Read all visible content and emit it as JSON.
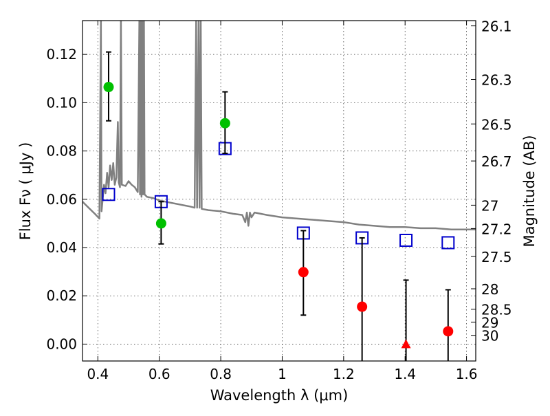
{
  "chart_data": {
    "type": "scatter",
    "title": "",
    "xlabel": "Wavelength  λ (μm)",
    "ylabel": "Flux  Fν  ( μJy )",
    "ylabel_right": "Magnitude (AB)",
    "xlim": [
      0.35,
      1.63
    ],
    "ylim": [
      -0.007,
      0.134
    ],
    "grid": true,
    "legend": "none",
    "x_ticks": [
      {
        "value": 0.4,
        "label": "0.4"
      },
      {
        "value": 0.6,
        "label": "0.6"
      },
      {
        "value": 0.8,
        "label": "0.8"
      },
      {
        "value": 1.0,
        "label": "1"
      },
      {
        "value": 1.2,
        "label": "1.2"
      },
      {
        "value": 1.4,
        "label": "1.4"
      },
      {
        "value": 1.6,
        "label": "1.6"
      }
    ],
    "y_ticks": [
      {
        "value": 0.0,
        "label": "0.00"
      },
      {
        "value": 0.02,
        "label": "0.02"
      },
      {
        "value": 0.04,
        "label": "0.04"
      },
      {
        "value": 0.06,
        "label": "0.06"
      },
      {
        "value": 0.08,
        "label": "0.08"
      },
      {
        "value": 0.1,
        "label": "0.10"
      },
      {
        "value": 0.12,
        "label": "0.12"
      }
    ],
    "right_ticks": [
      {
        "mag": 26.1,
        "label": "26.1"
      },
      {
        "mag": 26.3,
        "label": "26.3"
      },
      {
        "mag": 26.5,
        "label": "26.5"
      },
      {
        "mag": 26.7,
        "label": "26.7"
      },
      {
        "mag": 27,
        "label": "27"
      },
      {
        "mag": 27.2,
        "label": "27.2"
      },
      {
        "mag": 27.5,
        "label": "27.5"
      },
      {
        "mag": 28,
        "label": "28"
      },
      {
        "mag": 28.5,
        "label": "28.5"
      },
      {
        "mag": 29,
        "label": "29"
      },
      {
        "mag": 30,
        "label": "30"
      }
    ],
    "colors": {
      "model": "#808080",
      "green": "#00c000",
      "red": "#ff0000",
      "blue": "#0000cc",
      "errorbar": "#000000"
    },
    "model_spectrum": [
      [
        0.35,
        0.059
      ],
      [
        0.37,
        0.0565
      ],
      [
        0.39,
        0.054
      ],
      [
        0.405,
        0.052
      ],
      [
        0.41,
        0.134
      ],
      [
        0.412,
        0.055
      ],
      [
        0.42,
        0.066
      ],
      [
        0.425,
        0.0625
      ],
      [
        0.43,
        0.071
      ],
      [
        0.435,
        0.065
      ],
      [
        0.44,
        0.074
      ],
      [
        0.445,
        0.068
      ],
      [
        0.45,
        0.075
      ],
      [
        0.455,
        0.066
      ],
      [
        0.46,
        0.069
      ],
      [
        0.465,
        0.092
      ],
      [
        0.468,
        0.067
      ],
      [
        0.472,
        0.065
      ],
      [
        0.475,
        0.134
      ],
      [
        0.478,
        0.066
      ],
      [
        0.49,
        0.0655
      ],
      [
        0.5,
        0.0675
      ],
      [
        0.51,
        0.066
      ],
      [
        0.52,
        0.065
      ],
      [
        0.53,
        0.063
      ],
      [
        0.535,
        0.134
      ],
      [
        0.537,
        0.062
      ],
      [
        0.54,
        0.134
      ],
      [
        0.542,
        0.061
      ],
      [
        0.545,
        0.134
      ],
      [
        0.547,
        0.062
      ],
      [
        0.55,
        0.134
      ],
      [
        0.552,
        0.062
      ],
      [
        0.56,
        0.061
      ],
      [
        0.58,
        0.0605
      ],
      [
        0.6,
        0.0595
      ],
      [
        0.62,
        0.059
      ],
      [
        0.64,
        0.0585
      ],
      [
        0.66,
        0.058
      ],
      [
        0.68,
        0.0575
      ],
      [
        0.7,
        0.057
      ],
      [
        0.715,
        0.0565
      ],
      [
        0.72,
        0.134
      ],
      [
        0.723,
        0.0565
      ],
      [
        0.728,
        0.134
      ],
      [
        0.731,
        0.0565
      ],
      [
        0.735,
        0.134
      ],
      [
        0.738,
        0.056
      ],
      [
        0.76,
        0.0555
      ],
      [
        0.8,
        0.055
      ],
      [
        0.84,
        0.054
      ],
      [
        0.87,
        0.0535
      ],
      [
        0.88,
        0.0505
      ],
      [
        0.885,
        0.0545
      ],
      [
        0.89,
        0.049
      ],
      [
        0.895,
        0.0545
      ],
      [
        0.9,
        0.0525
      ],
      [
        0.91,
        0.0545
      ],
      [
        0.93,
        0.054
      ],
      [
        0.95,
        0.0535
      ],
      [
        1.0,
        0.0525
      ],
      [
        1.05,
        0.052
      ],
      [
        1.1,
        0.0515
      ],
      [
        1.15,
        0.051
      ],
      [
        1.2,
        0.0505
      ],
      [
        1.25,
        0.0495
      ],
      [
        1.3,
        0.049
      ],
      [
        1.35,
        0.0485
      ],
      [
        1.4,
        0.0485
      ],
      [
        1.45,
        0.048
      ],
      [
        1.5,
        0.048
      ],
      [
        1.55,
        0.0475
      ],
      [
        1.6,
        0.0475
      ],
      [
        1.63,
        0.0475
      ]
    ],
    "model_points": [
      {
        "x": 0.435,
        "y": 0.062
      },
      {
        "x": 0.606,
        "y": 0.059
      },
      {
        "x": 0.814,
        "y": 0.081
      },
      {
        "x": 1.069,
        "y": 0.046
      },
      {
        "x": 1.26,
        "y": 0.044
      },
      {
        "x": 1.403,
        "y": 0.043
      },
      {
        "x": 1.54,
        "y": 0.042
      }
    ],
    "detections": [
      {
        "x": 0.435,
        "y": 0.1065,
        "err_lo": 0.0925,
        "err_hi": 0.121,
        "color": "green"
      },
      {
        "x": 0.606,
        "y": 0.05,
        "err_lo": 0.0415,
        "err_hi": 0.059,
        "color": "green"
      },
      {
        "x": 0.814,
        "y": 0.0915,
        "err_lo": 0.079,
        "err_hi": 0.1045,
        "color": "green"
      },
      {
        "x": 1.069,
        "y": 0.0298,
        "err_lo": 0.012,
        "err_hi": 0.047,
        "color": "red"
      },
      {
        "x": 1.26,
        "y": 0.0155,
        "err_lo": -0.007,
        "err_hi": 0.044,
        "color": "red"
      },
      {
        "x": 1.54,
        "y": 0.0053,
        "err_lo": -0.007,
        "err_hi": 0.0225,
        "color": "red"
      }
    ],
    "upper_limits": [
      {
        "x": 1.403,
        "y": 0.0,
        "err_lo": -0.007,
        "err_hi": 0.0265,
        "color": "red"
      }
    ]
  }
}
